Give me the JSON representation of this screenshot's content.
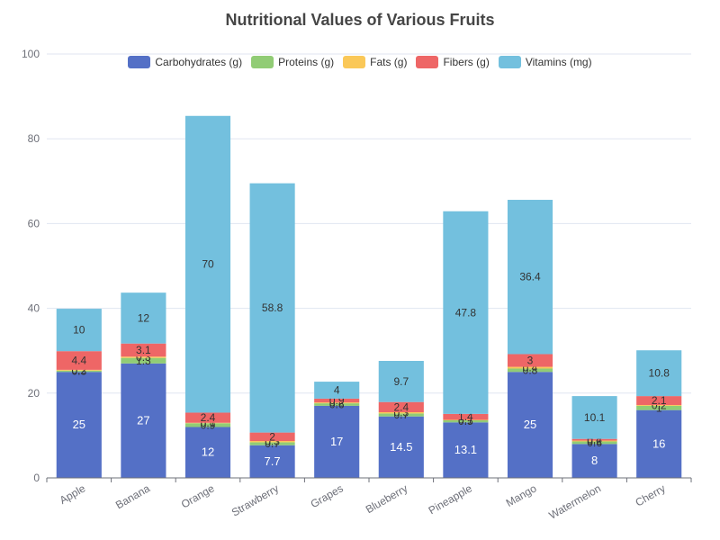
{
  "chart_data": {
    "type": "bar",
    "stacked": true,
    "title": "Nutritional Values of Various Fruits",
    "xlabel": "",
    "ylabel": "",
    "ylim": [
      0,
      100
    ],
    "yticks": [
      0,
      20,
      40,
      60,
      80,
      100
    ],
    "grid": true,
    "legend_position": "top",
    "categories": [
      "Apple",
      "Banana",
      "Orange",
      "Strawberry",
      "Grapes",
      "Blueberry",
      "Pineapple",
      "Mango",
      "Watermelon",
      "Cherry"
    ],
    "series": [
      {
        "name": "Carbohydrates (g)",
        "color": "#5470c6",
        "values": [
          25,
          27,
          12,
          7.7,
          17,
          14.5,
          13.1,
          25,
          8,
          16
        ]
      },
      {
        "name": "Proteins (g)",
        "color": "#91cc75",
        "values": [
          0.3,
          1.3,
          0.9,
          0.7,
          0.6,
          0.7,
          0.5,
          0.8,
          0.6,
          1
        ]
      },
      {
        "name": "Fats (g)",
        "color": "#fac858",
        "values": [
          0.2,
          0.3,
          0.1,
          0.3,
          0.2,
          0.3,
          0.1,
          0.4,
          0.2,
          0.2
        ]
      },
      {
        "name": "Fibers (g)",
        "color": "#ee6666",
        "values": [
          4.4,
          3.1,
          2.4,
          2,
          0.9,
          2.4,
          1.4,
          3,
          0.4,
          2.1
        ]
      },
      {
        "name": "Vitamins (mg)",
        "color": "#73c0de",
        "values": [
          10,
          12,
          70,
          58.8,
          4,
          9.7,
          47.8,
          36.4,
          10.1,
          10.8
        ]
      }
    ]
  }
}
